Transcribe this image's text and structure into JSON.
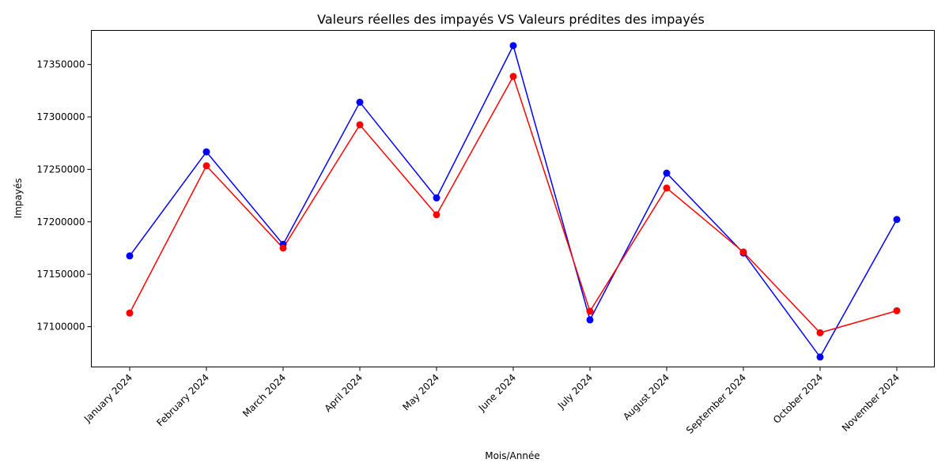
{
  "chart_data": {
    "type": "line",
    "title": "Valeurs réelles des impayés  VS Valeurs prédites des impayés",
    "xlabel": "Mois/Année",
    "ylabel": "Impayés",
    "categories": [
      "January 2024",
      "February 2024",
      "March 2024",
      "April 2024",
      "May 2024",
      "June 2024",
      "July 2024",
      "August 2024",
      "September 2024",
      "October 2024",
      "November 2024"
    ],
    "series": [
      {
        "color": "#0000ff",
        "values": [
          17167500,
          17266700,
          17178500,
          17314000,
          17222800,
          17368000,
          17106500,
          17246400,
          17170300,
          17071100,
          17202200
        ]
      },
      {
        "color": "#ff0000",
        "values": [
          17113000,
          17253400,
          17175000,
          17292500,
          17206700,
          17338600,
          17114700,
          17232200,
          17171200,
          17094200,
          17115200
        ]
      }
    ],
    "yticks": [
      17100000,
      17150000,
      17200000,
      17250000,
      17300000,
      17350000
    ],
    "ylim": [
      17061600,
      17382500
    ],
    "grid": false,
    "legend": false
  }
}
